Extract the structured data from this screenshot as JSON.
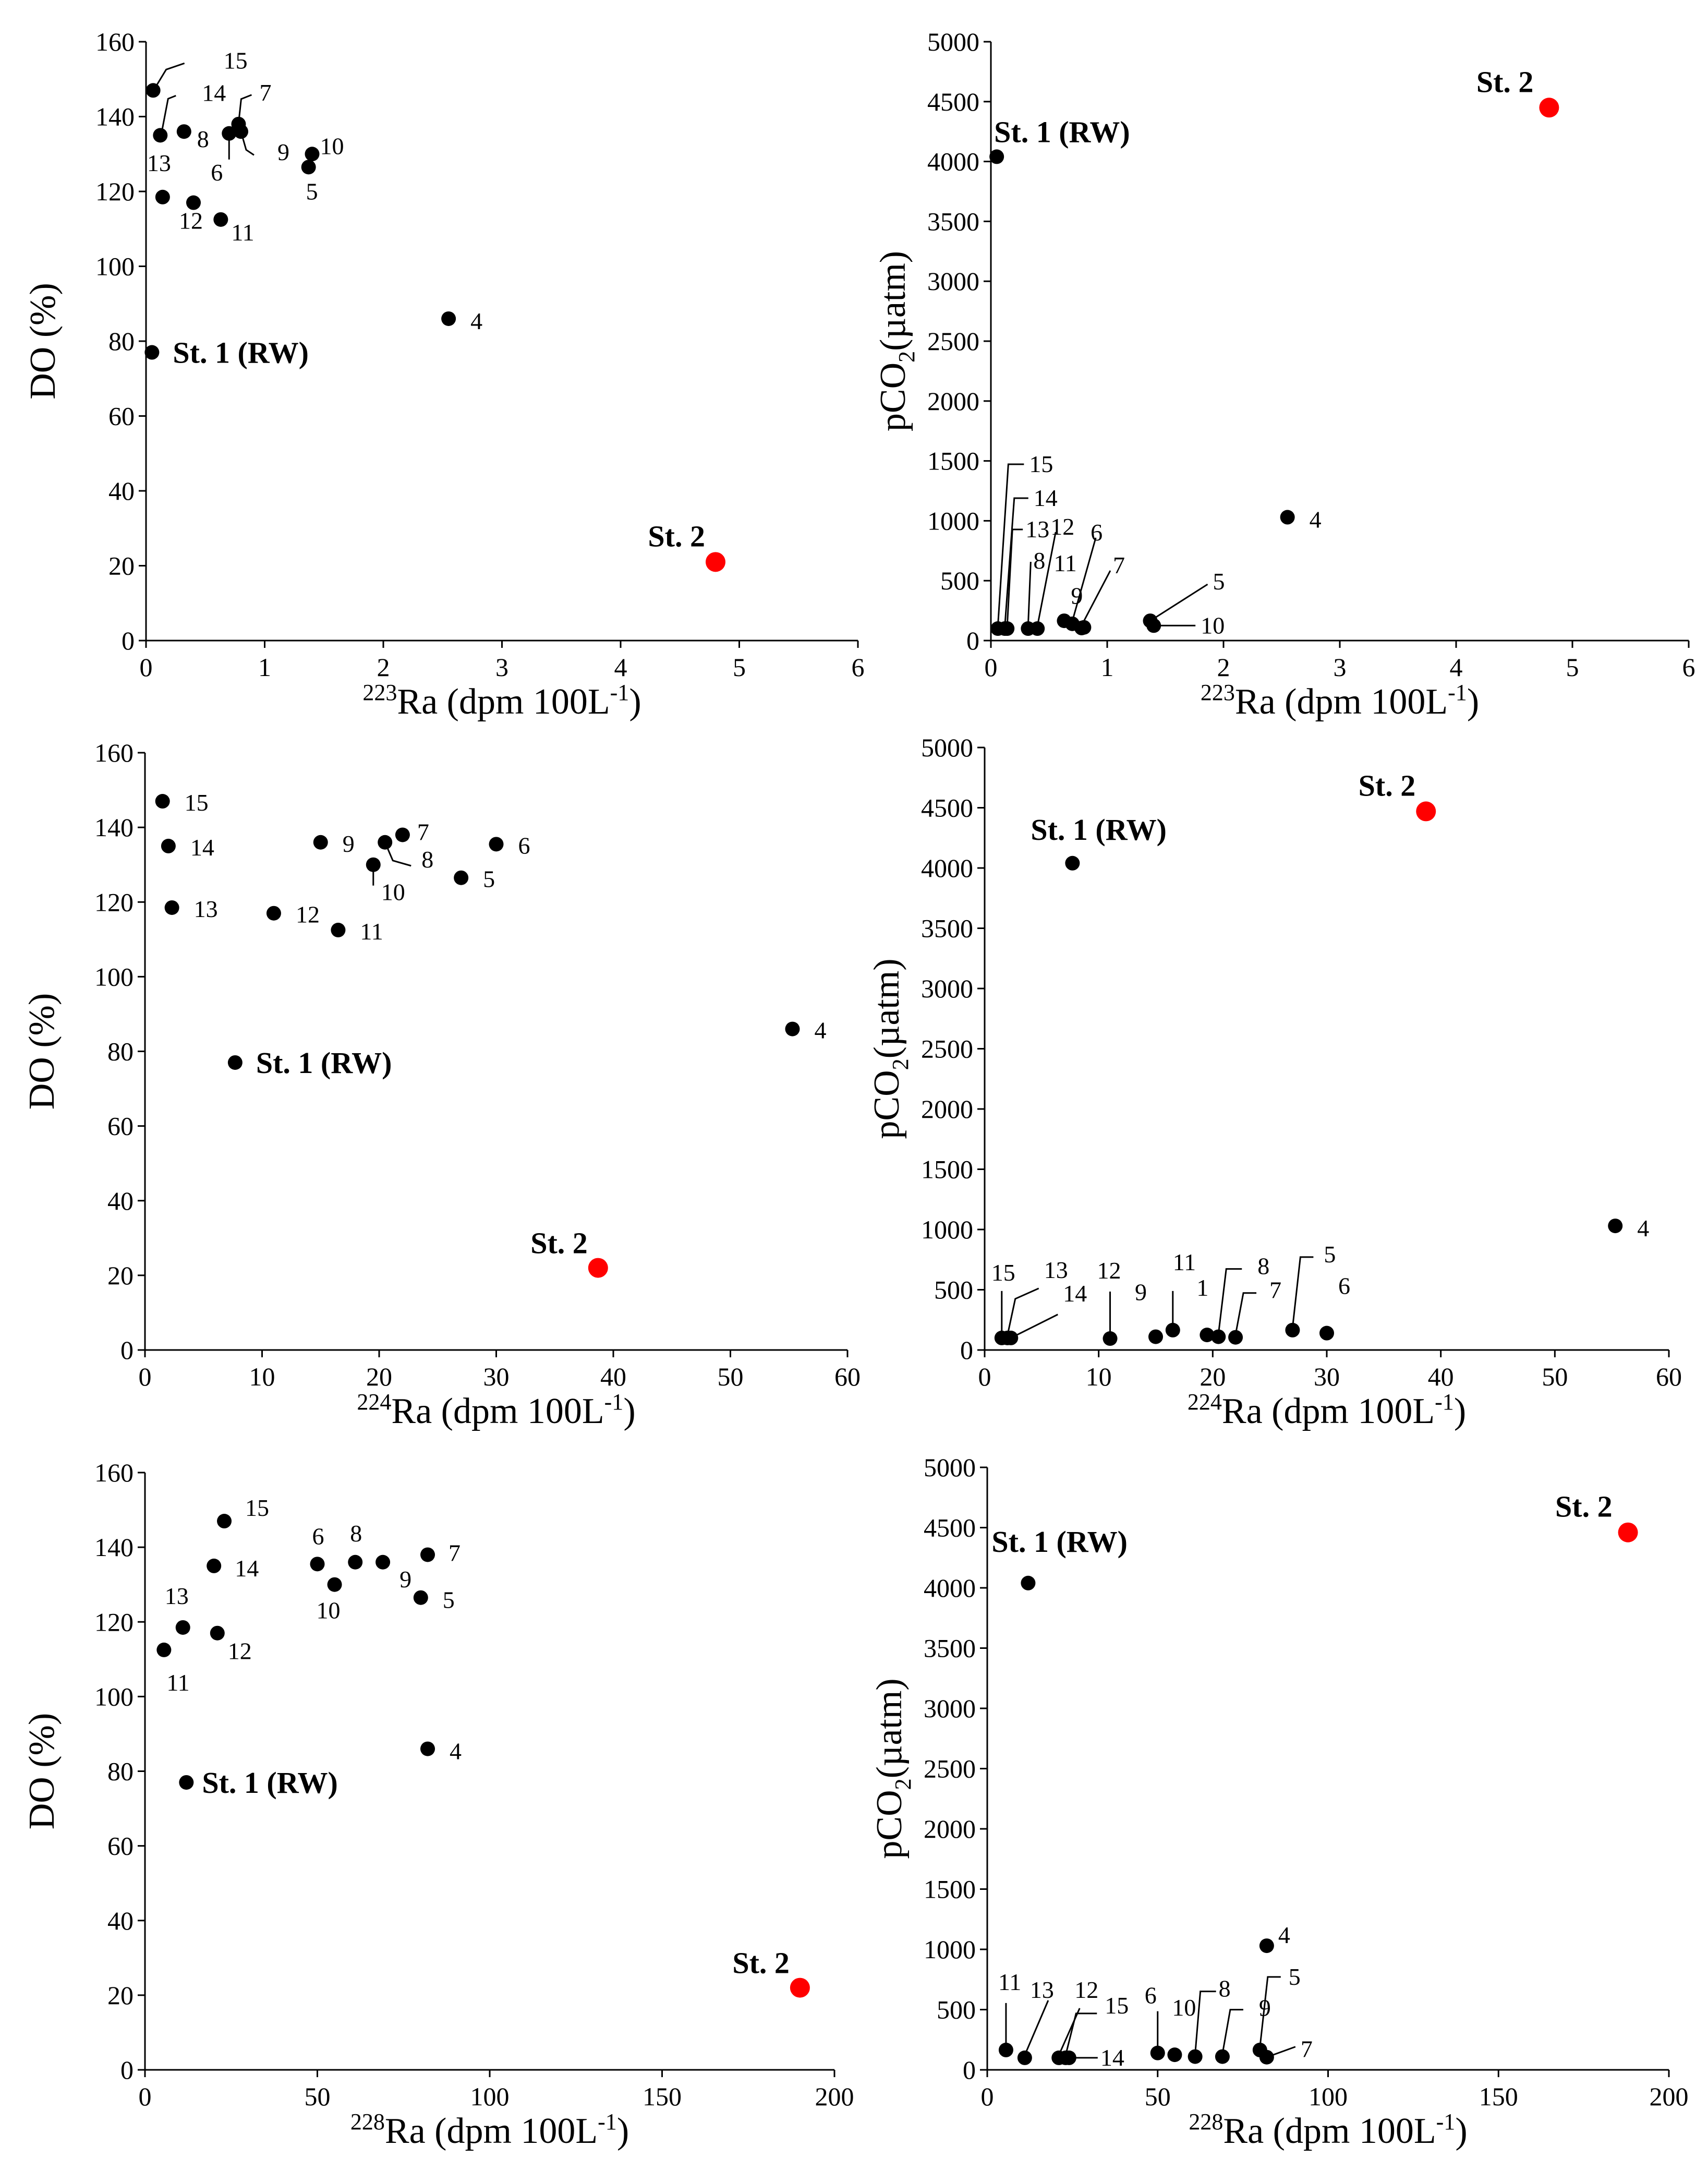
{
  "colors": {
    "point": "#000000",
    "highlight": "#ff0000"
  },
  "chart_data": [
    {
      "id": "p1",
      "type": "scatter",
      "xlabel": {
        "sup": "223",
        "rest": "Ra (dpm 100L",
        "unitSup": "-1",
        "close": ")"
      },
      "ylabel": {
        "main": "DO (%)",
        "sub": "",
        "rest": ""
      },
      "xlim": [
        0,
        6
      ],
      "ylim": [
        0,
        160
      ],
      "xticks": [
        "0",
        "1",
        "2",
        "3",
        "4",
        "5",
        "6"
      ],
      "yticks": [
        "0",
        "20",
        "40",
        "60",
        "80",
        "100",
        "120",
        "140",
        "160"
      ],
      "points": [
        {
          "name": "15",
          "x": 0.06,
          "y": 147
        },
        {
          "name": "14",
          "x": 0.12,
          "y": 135
        },
        {
          "name": "8",
          "x": 0.32,
          "y": 136
        },
        {
          "name": "7",
          "x": 0.78,
          "y": 138
        },
        {
          "name": "9",
          "x": 0.8,
          "y": 136
        },
        {
          "name": "6",
          "x": 0.7,
          "y": 135.5
        },
        {
          "name": "10",
          "x": 1.4,
          "y": 130
        },
        {
          "name": "5",
          "x": 1.37,
          "y": 126.5
        },
        {
          "name": "13",
          "x": 0.14,
          "y": 118.5
        },
        {
          "name": "12",
          "x": 0.4,
          "y": 117
        },
        {
          "name": "11",
          "x": 0.63,
          "y": 112.5
        },
        {
          "name": "4",
          "x": 2.55,
          "y": 86
        },
        {
          "name": "St. 1 (RW)",
          "x": 0.05,
          "y": 77
        },
        {
          "name": "St. 2",
          "x": 4.8,
          "y": 21,
          "highlight": true
        }
      ]
    },
    {
      "id": "p2",
      "type": "scatter",
      "xlabel": {
        "sup": "223",
        "rest": "Ra (dpm 100L",
        "unitSup": "-1",
        "close": ")"
      },
      "ylabel": {
        "main": "pCO",
        "sub": "2",
        "rest": "(µatm)"
      },
      "xlim": [
        0,
        6
      ],
      "ylim": [
        0,
        5000
      ],
      "xticks": [
        "0",
        "1",
        "2",
        "3",
        "4",
        "5",
        "6"
      ],
      "yticks": [
        "0",
        "500",
        "1000",
        "1500",
        "2000",
        "2500",
        "3000",
        "3500",
        "4000",
        "4500",
        "5000"
      ],
      "points": [
        {
          "name": "St. 1 (RW)",
          "x": 0.05,
          "y": 4040
        },
        {
          "name": "St. 2",
          "x": 4.8,
          "y": 4450,
          "highlight": true
        },
        {
          "name": "4",
          "x": 2.55,
          "y": 1030
        },
        {
          "name": "15",
          "x": 0.06,
          "y": 100
        },
        {
          "name": "14",
          "x": 0.12,
          "y": 100
        },
        {
          "name": "13",
          "x": 0.14,
          "y": 100
        },
        {
          "name": "8",
          "x": 0.32,
          "y": 100
        },
        {
          "name": "12",
          "x": 0.4,
          "y": 100
        },
        {
          "name": "11",
          "x": 0.63,
          "y": 165
        },
        {
          "name": "6",
          "x": 0.7,
          "y": 140
        },
        {
          "name": "7",
          "x": 0.78,
          "y": 105
        },
        {
          "name": "9",
          "x": 0.8,
          "y": 110
        },
        {
          "name": "5",
          "x": 1.37,
          "y": 165
        },
        {
          "name": "10",
          "x": 1.4,
          "y": 125
        }
      ]
    },
    {
      "id": "p3",
      "type": "scatter",
      "xlabel": {
        "sup": "224",
        "rest": "Ra (dpm 100L",
        "unitSup": "-1",
        "close": ")"
      },
      "ylabel": {
        "main": "DO (%)",
        "sub": "",
        "rest": ""
      },
      "xlim": [
        0,
        60
      ],
      "ylim": [
        0,
        160
      ],
      "xticks": [
        "0",
        "10",
        "20",
        "30",
        "40",
        "50",
        "60"
      ],
      "yticks": [
        "0",
        "20",
        "40",
        "60",
        "80",
        "100",
        "120",
        "140",
        "160"
      ],
      "points": [
        {
          "name": "15",
          "x": 1.5,
          "y": 147
        },
        {
          "name": "14",
          "x": 2,
          "y": 135
        },
        {
          "name": "13",
          "x": 2.3,
          "y": 118.5
        },
        {
          "name": "12",
          "x": 11,
          "y": 117
        },
        {
          "name": "11",
          "x": 16.5,
          "y": 112.5
        },
        {
          "name": "9",
          "x": 15,
          "y": 136
        },
        {
          "name": "10",
          "x": 19.5,
          "y": 130
        },
        {
          "name": "8",
          "x": 20.5,
          "y": 136
        },
        {
          "name": "7",
          "x": 22,
          "y": 138
        },
        {
          "name": "6",
          "x": 30,
          "y": 135.5
        },
        {
          "name": "5",
          "x": 27,
          "y": 126.5
        },
        {
          "name": "4",
          "x": 55.3,
          "y": 86
        },
        {
          "name": "St. 1 (RW)",
          "x": 7.7,
          "y": 77
        },
        {
          "name": "St. 2",
          "x": 38.7,
          "y": 22,
          "highlight": true
        }
      ]
    },
    {
      "id": "p4",
      "type": "scatter",
      "xlabel": {
        "sup": "224",
        "rest": "Ra (dpm 100L",
        "unitSup": "-1",
        "close": ")"
      },
      "ylabel": {
        "main": "pCO",
        "sub": "2",
        "rest": "(µatm)"
      },
      "xlim": [
        0,
        60
      ],
      "ylim": [
        0,
        5000
      ],
      "xticks": [
        "0",
        "10",
        "20",
        "30",
        "40",
        "50",
        "60"
      ],
      "yticks": [
        "0",
        "500",
        "1000",
        "1500",
        "2000",
        "2500",
        "3000",
        "3500",
        "4000",
        "4500",
        "5000"
      ],
      "points": [
        {
          "name": "St. 1 (RW)",
          "x": 7.7,
          "y": 4040
        },
        {
          "name": "St. 2",
          "x": 38.7,
          "y": 4470,
          "highlight": true
        },
        {
          "name": "4",
          "x": 55.3,
          "y": 1030
        },
        {
          "name": "15",
          "x": 1.5,
          "y": 100
        },
        {
          "name": "13",
          "x": 2,
          "y": 100
        },
        {
          "name": "14",
          "x": 2.3,
          "y": 100
        },
        {
          "name": "12",
          "x": 11,
          "y": 95
        },
        {
          "name": "9",
          "x": 15,
          "y": 110
        },
        {
          "name": "11",
          "x": 16.5,
          "y": 165
        },
        {
          "name": "1",
          "x": 19.5,
          "y": 125
        },
        {
          "name": "8",
          "x": 20.5,
          "y": 110
        },
        {
          "name": "7",
          "x": 22,
          "y": 105
        },
        {
          "name": "5",
          "x": 27,
          "y": 165
        },
        {
          "name": "6",
          "x": 30,
          "y": 140
        }
      ]
    },
    {
      "id": "p5",
      "type": "scatter",
      "xlabel": {
        "sup": "228",
        "rest": "Ra (dpm 100L",
        "unitSup": "-1",
        "close": ")"
      },
      "ylabel": {
        "main": "DO (%)",
        "sub": "",
        "rest": ""
      },
      "xlim": [
        0,
        200
      ],
      "ylim": [
        0,
        160
      ],
      "xticks": [
        "0",
        "50",
        "100",
        "150",
        "200"
      ],
      "yticks": [
        "0",
        "20",
        "40",
        "60",
        "80",
        "100",
        "120",
        "140",
        "160"
      ],
      "points": [
        {
          "name": "15",
          "x": 23,
          "y": 147
        },
        {
          "name": "14",
          "x": 20,
          "y": 135
        },
        {
          "name": "13",
          "x": 11,
          "y": 118.5
        },
        {
          "name": "12",
          "x": 21,
          "y": 117
        },
        {
          "name": "11",
          "x": 5.5,
          "y": 112.5
        },
        {
          "name": "6",
          "x": 50,
          "y": 135.5
        },
        {
          "name": "10",
          "x": 55,
          "y": 130
        },
        {
          "name": "8",
          "x": 61,
          "y": 136
        },
        {
          "name": "9",
          "x": 69,
          "y": 136
        },
        {
          "name": "7",
          "x": 82,
          "y": 138
        },
        {
          "name": "5",
          "x": 80,
          "y": 126.5
        },
        {
          "name": "4",
          "x": 82,
          "y": 86
        },
        {
          "name": "St. 1 (RW)",
          "x": 12,
          "y": 77
        },
        {
          "name": "St. 2",
          "x": 190,
          "y": 22,
          "highlight": true
        }
      ]
    },
    {
      "id": "p6",
      "type": "scatter",
      "xlabel": {
        "sup": "228",
        "rest": "Ra (dpm 100L",
        "unitSup": "-1",
        "close": ")"
      },
      "ylabel": {
        "main": "pCO",
        "sub": "2",
        "rest": "(µatm)"
      },
      "xlim": [
        0,
        200
      ],
      "ylim": [
        0,
        5000
      ],
      "xticks": [
        "0",
        "50",
        "100",
        "150",
        "200"
      ],
      "yticks": [
        "0",
        "500",
        "1000",
        "1500",
        "2000",
        "2500",
        "3000",
        "3500",
        "4000",
        "4500",
        "5000"
      ],
      "points": [
        {
          "name": "St. 1 (RW)",
          "x": 12,
          "y": 4040
        },
        {
          "name": "St. 2",
          "x": 188,
          "y": 4460,
          "highlight": true
        },
        {
          "name": "4",
          "x": 82,
          "y": 1030
        },
        {
          "name": "11",
          "x": 5.5,
          "y": 165
        },
        {
          "name": "13",
          "x": 11,
          "y": 100
        },
        {
          "name": "12",
          "x": 21,
          "y": 100
        },
        {
          "name": "15",
          "x": 23,
          "y": 100
        },
        {
          "name": "14",
          "x": 24,
          "y": 100
        },
        {
          "name": "6",
          "x": 50,
          "y": 140
        },
        {
          "name": "10",
          "x": 55,
          "y": 125
        },
        {
          "name": "8",
          "x": 61,
          "y": 110
        },
        {
          "name": "9",
          "x": 69,
          "y": 110
        },
        {
          "name": "5",
          "x": 80,
          "y": 165
        },
        {
          "name": "7",
          "x": 82,
          "y": 105
        }
      ]
    }
  ]
}
